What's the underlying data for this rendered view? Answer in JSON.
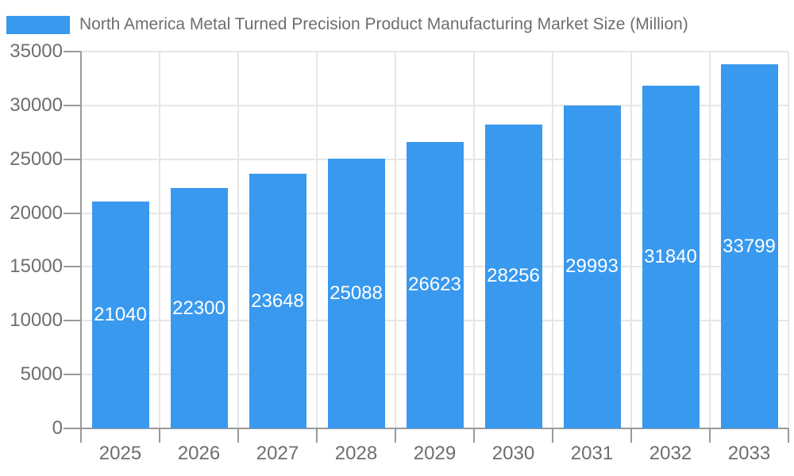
{
  "legend": {
    "label": "North America Metal Turned Precision Product Manufacturing Market Size (Million)"
  },
  "chart_data": {
    "type": "bar",
    "title": "North America Metal Turned Precision Product Manufacturing Market Size (Million)",
    "categories": [
      "2025",
      "2026",
      "2027",
      "2028",
      "2029",
      "2030",
      "2031",
      "2032",
      "2033"
    ],
    "values": [
      21040,
      22300,
      23648,
      25088,
      26623,
      28256,
      29993,
      31840,
      33799
    ],
    "series": [
      {
        "name": "North America Metal Turned Precision Product Manufacturing Market Size (Million)",
        "values": [
          21040,
          22300,
          23648,
          25088,
          26623,
          28256,
          29993,
          31840,
          33799
        ]
      }
    ],
    "value_labels": [
      "21040",
      "22300",
      "23648",
      "25088",
      "26623",
      "28256",
      "29993",
      "31840",
      "33799"
    ],
    "xlabel": "",
    "ylabel": "",
    "ylim": [
      0,
      35000
    ],
    "y_tick_step": 5000,
    "y_tick_labels": [
      "0",
      "5000",
      "10000",
      "15000",
      "20000",
      "25000",
      "30000",
      "35000"
    ],
    "grid": true,
    "legend_position": "top-left",
    "value_label_position": "inside-center"
  },
  "colors": {
    "bar": "#3999ee",
    "grid": "#e6e6e6",
    "axis": "#9a9a9a",
    "text": "#6e6e6e",
    "value_text": "#ffffff",
    "background": "#ffffff"
  }
}
